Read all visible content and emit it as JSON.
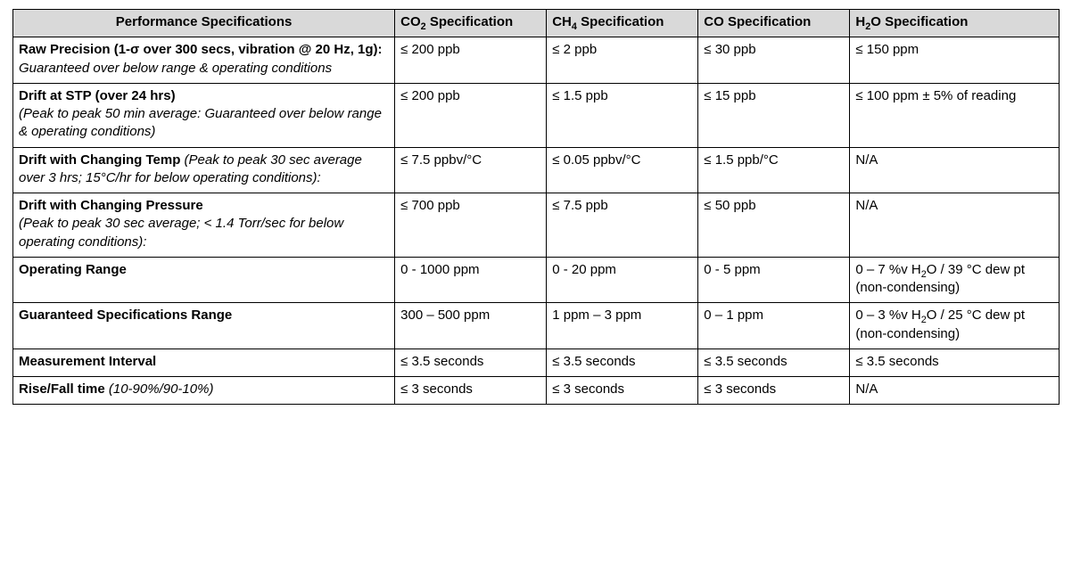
{
  "table": {
    "type": "table",
    "background_color": "#ffffff",
    "border_color": "#000000",
    "header_background": "#d9d9d9",
    "font_family": "Arial",
    "font_size_pt": 11,
    "column_widths_percent": [
      36.5,
      14.5,
      14.5,
      14.5,
      20.0
    ],
    "columns": {
      "perf": "Performance Specifications",
      "co2_pre": "CO",
      "co2_sub": "2",
      "co2_post": " Specification",
      "ch4_pre": "CH",
      "ch4_sub": "4",
      "ch4_post": " Specification",
      "co_pre": "CO",
      "co_post": " Specification",
      "h2o_pre": "H",
      "h2o_sub": "2",
      "h2o_post": "O Specification"
    },
    "rows": [
      {
        "title": "Raw Precision (1-σ over 300 secs, vibration @ 20 Hz, 1g): ",
        "note": "Guaranteed over below range & operating conditions",
        "co2": "≤ 200 ppb",
        "ch4": "≤ 2 ppb",
        "co": "≤ 30 ppb",
        "h2o": "≤ 150 ppm"
      },
      {
        "title": "Drift at STP (over 24 hrs)",
        "note": "(Peak to peak 50 min average: Guaranteed over below range & operating conditions)",
        "note_newline": true,
        "co2": "≤ 200 ppb",
        "ch4": "≤ 1.5 ppb",
        "co": "≤ 15 ppb",
        "h2o": "≤ 100 ppm ± 5% of reading"
      },
      {
        "title": "Drift with Changing Temp ",
        "note": "(Peak to peak 30 sec average over 3 hrs; 15°C/hr for below operating conditions):",
        "co2": "≤ 7.5 ppbv/°C",
        "ch4": "≤ 0.05 ppbv/°C",
        "co": "≤ 1.5 ppb/°C",
        "h2o": "N/A"
      },
      {
        "title": "Drift with Changing Pressure",
        "note": "(Peak to peak 30 sec average; < 1.4 Torr/sec for below operating conditions):",
        "note_newline": true,
        "co2": "≤ 700 ppb",
        "ch4": "≤ 7.5 ppb",
        "co": "≤ 50 ppb",
        "h2o": "N/A"
      },
      {
        "title": "Operating Range",
        "note": "",
        "co2": "0 - 1000 ppm",
        "ch4": "0 - 20 ppm",
        "co": "0 - 5 ppm",
        "h2o_pre": "0 – 7 %v H",
        "h2o_sub": "2",
        "h2o_post": "O / 39 °C dew pt (non-condensing)"
      },
      {
        "title": "Guaranteed Specifications Range",
        "note": "",
        "co2": "300 – 500 ppm",
        "ch4": "1 ppm – 3 ppm",
        "co": "0 – 1 ppm",
        "h2o_pre": "0 – 3 %v H",
        "h2o_sub": "2",
        "h2o_post": "O / 25 °C dew pt (non-condensing)"
      },
      {
        "title": "Measurement Interval",
        "note": "",
        "co2": "≤ 3.5 seconds",
        "ch4": "≤ 3.5 seconds",
        "co": "≤ 3.5 seconds",
        "h2o": "≤ 3.5 seconds"
      },
      {
        "title": "Rise/Fall time ",
        "note": "(10-90%/90-10%)",
        "co2": "≤ 3 seconds",
        "ch4": "≤ 3 seconds",
        "co": "≤ 3 seconds",
        "h2o": "N/A"
      }
    ]
  }
}
